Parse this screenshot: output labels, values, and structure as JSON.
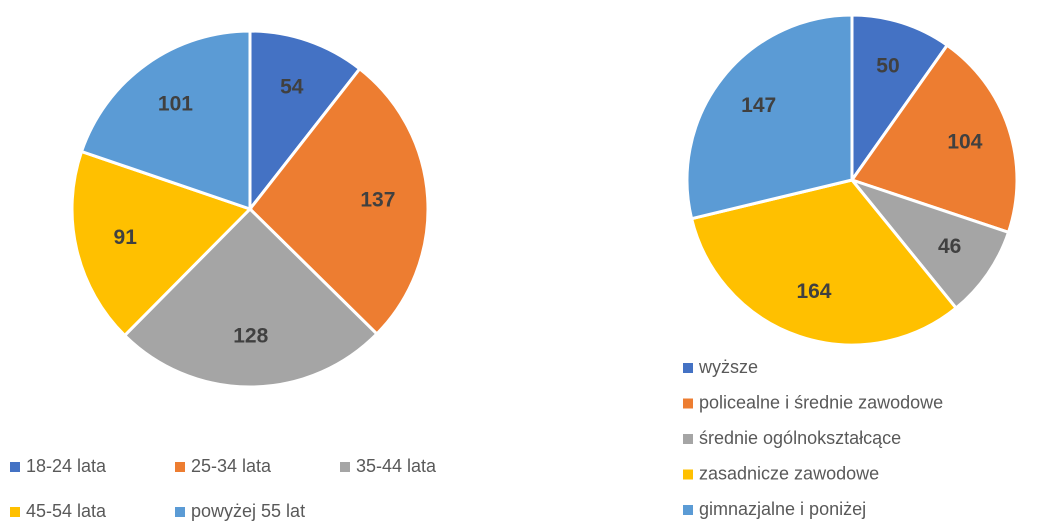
{
  "chart_data": [
    {
      "type": "pie",
      "categories": [
        "18-24 lata",
        "25-34 lata",
        "35-44 lata",
        "45-54 lata",
        "powyżej 55 lat"
      ],
      "values": [
        54,
        137,
        128,
        91,
        101
      ],
      "colors": [
        "#4472c4",
        "#ed7d31",
        "#a5a5a5",
        "#ffc000",
        "#5b9bd5"
      ],
      "legend": "bottom"
    },
    {
      "type": "pie",
      "categories": [
        "wyższe",
        "policealne i średnie zawodowe",
        "średnie ogólnokształcące",
        "zasadnicze zawodowe",
        "gimnazjalne i poniżej"
      ],
      "values": [
        50,
        104,
        46,
        164,
        147
      ],
      "colors": [
        "#4472c4",
        "#ed7d31",
        "#a5a5a5",
        "#ffc000",
        "#5b9bd5"
      ],
      "legend": "bottom"
    }
  ]
}
